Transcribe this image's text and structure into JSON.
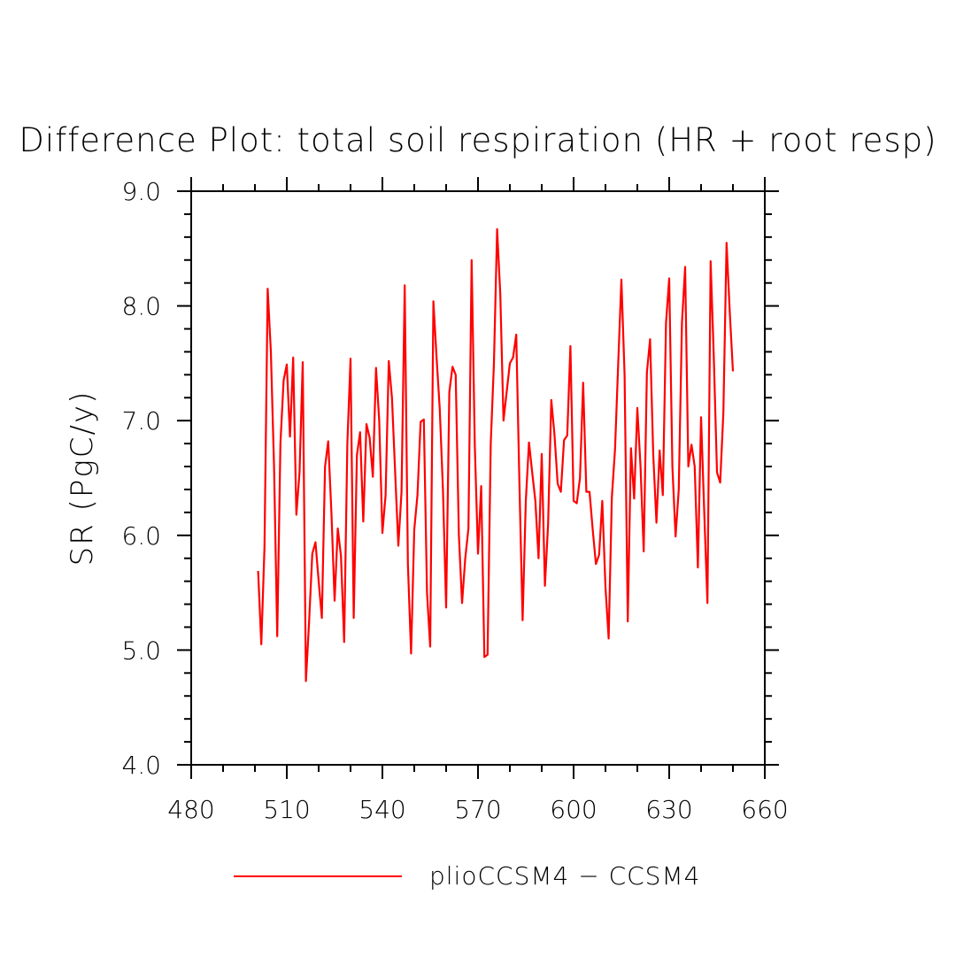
{
  "chart_data": {
    "type": "line",
    "title": "Difference Plot: total soil respiration (HR + root resp)",
    "xlabel": "",
    "ylabel": "SR  (PgC/y)",
    "xlim": [
      480,
      660
    ],
    "ylim": [
      4.0,
      9.0
    ],
    "x_ticks": [
      "480",
      "510",
      "540",
      "570",
      "600",
      "630",
      "660"
    ],
    "y_ticks": [
      "4.0",
      "5.0",
      "6.0",
      "7.0",
      "8.0",
      "9.0"
    ],
    "legend_position": "bottom-center",
    "grid": false,
    "series": [
      {
        "name": "plioCCSM4 − CCSM4",
        "color": "#ff0000",
        "x": [
          501,
          502,
          503,
          504,
          505,
          506,
          507,
          508,
          509,
          510,
          511,
          512,
          513,
          514,
          515,
          516,
          517,
          518,
          519,
          520,
          521,
          522,
          523,
          524,
          525,
          526,
          527,
          528,
          529,
          530,
          531,
          532,
          533,
          534,
          535,
          536,
          537,
          538,
          539,
          540,
          541,
          542,
          543,
          544,
          545,
          546,
          547,
          548,
          549,
          550,
          551,
          552,
          553,
          554,
          555,
          556,
          557,
          558,
          559,
          560,
          561,
          562,
          563,
          564,
          565,
          566,
          567,
          568,
          569,
          570,
          571,
          572,
          573,
          574,
          575,
          576,
          577,
          578,
          579,
          580,
          581,
          582,
          583,
          584,
          585,
          586,
          587,
          588,
          589,
          590,
          591,
          592,
          593,
          594,
          595,
          596,
          597,
          598,
          599,
          600,
          601,
          602,
          603,
          604,
          605,
          606,
          607,
          608,
          609,
          610,
          611,
          612,
          613,
          614,
          615,
          616,
          617,
          618,
          619,
          620,
          621,
          622,
          623,
          624,
          625,
          626,
          627,
          628,
          629,
          630,
          631,
          632,
          633,
          634,
          635,
          636,
          637,
          638,
          639,
          640,
          641,
          642,
          643,
          644,
          645,
          646,
          647,
          648,
          649,
          650
        ],
        "values": [
          5.69,
          5.05,
          5.9,
          8.15,
          7.6,
          6.6,
          5.12,
          6.8,
          7.35,
          7.49,
          6.86,
          7.55,
          6.18,
          6.55,
          7.51,
          4.73,
          5.25,
          5.84,
          5.94,
          5.6,
          5.28,
          6.6,
          6.82,
          6.2,
          5.43,
          6.06,
          5.82,
          5.07,
          6.8,
          7.54,
          5.28,
          6.7,
          6.9,
          6.12,
          6.97,
          6.85,
          6.51,
          7.46,
          7.0,
          6.02,
          6.35,
          7.52,
          7.2,
          6.55,
          5.91,
          6.38,
          8.18,
          5.75,
          4.97,
          6.05,
          6.35,
          6.99,
          7.01,
          5.5,
          5.03,
          8.04,
          7.55,
          7.1,
          6.4,
          5.37,
          7.25,
          7.47,
          7.4,
          6.0,
          5.41,
          5.8,
          6.06,
          8.4,
          6.78,
          5.84,
          6.43,
          4.94,
          4.96,
          6.8,
          7.5,
          8.67,
          8.1,
          7.0,
          7.25,
          7.5,
          7.55,
          7.75,
          6.45,
          5.26,
          6.3,
          6.81,
          6.55,
          6.3,
          5.8,
          6.71,
          5.56,
          6.1,
          7.18,
          6.88,
          6.45,
          6.38,
          6.83,
          6.87,
          7.65,
          6.3,
          6.28,
          6.5,
          7.33,
          6.38,
          6.38,
          6.05,
          5.75,
          5.83,
          6.3,
          5.55,
          5.1,
          6.33,
          6.75,
          7.5,
          8.23,
          7.4,
          5.25,
          6.76,
          6.32,
          7.11,
          6.6,
          5.86,
          7.42,
          7.71,
          6.7,
          6.11,
          6.74,
          6.35,
          7.85,
          8.24,
          6.6,
          5.99,
          6.4,
          7.85,
          8.34,
          6.6,
          6.79,
          6.6,
          5.72,
          7.03,
          6.2,
          5.41,
          8.39,
          7.55,
          6.55,
          6.46,
          7.07,
          8.55,
          7.95,
          7.43
        ]
      }
    ]
  }
}
